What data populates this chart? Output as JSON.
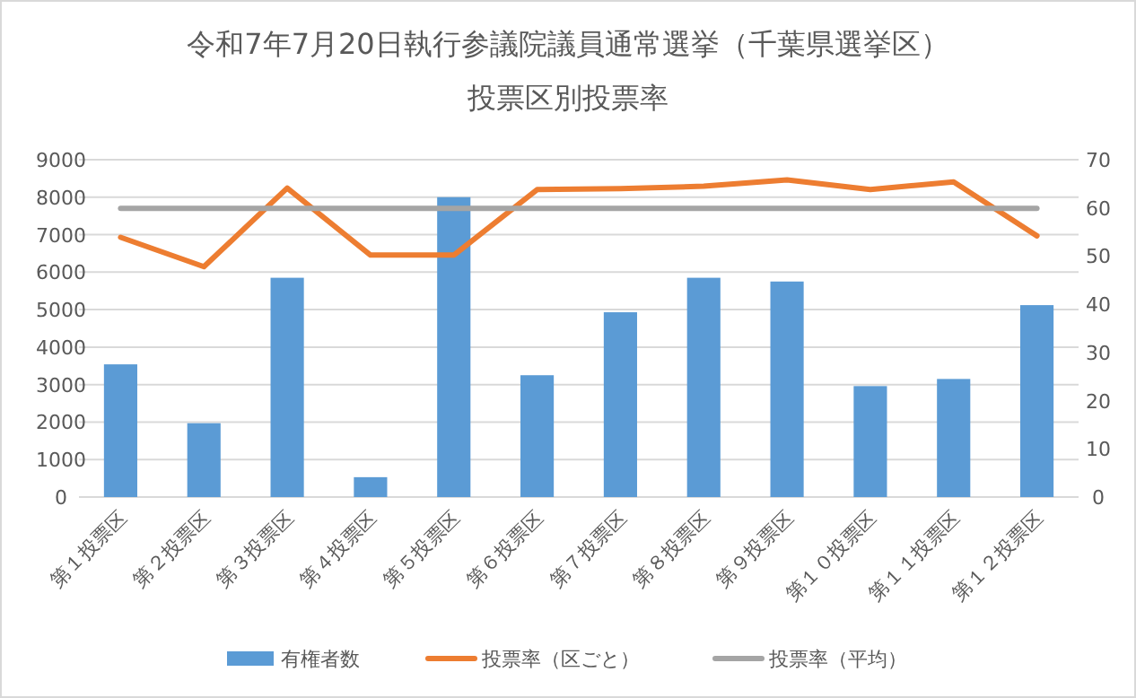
{
  "chart_data": {
    "type": "bar",
    "title": "令和7年7月20日執行参議院議員通常選挙（千葉県選挙区）",
    "subtitle": "投票区別投票率",
    "categories": [
      "第１投票区",
      "第２投票区",
      "第３投票区",
      "第４投票区",
      "第５投票区",
      "第６投票区",
      "第７投票区",
      "第８投票区",
      "第９投票区",
      "第１０投票区",
      "第１１投票区",
      "第１２投票区"
    ],
    "series": [
      {
        "name": "有権者数",
        "color": "#5b9bd5",
        "values": [
          3540,
          1970,
          5850,
          530,
          8000,
          3250,
          4930,
          5850,
          5750,
          2960,
          3150,
          5120
        ]
      },
      {
        "name": "投票率（区ごと）",
        "type": "line",
        "axis": "y2",
        "color": "#ed7d31",
        "values": [
          53.9,
          47.8,
          64.1,
          50.2,
          50.2,
          63.8,
          64.0,
          64.5,
          65.8,
          63.8,
          65.4,
          54.2
        ]
      },
      {
        "name": "投票率（平均）",
        "type": "line",
        "axis": "y2",
        "color": "#a5a5a5",
        "values": [
          59.9,
          59.9,
          59.9,
          59.9,
          59.9,
          59.9,
          59.9,
          59.9,
          59.9,
          59.9,
          59.9,
          59.9
        ]
      }
    ],
    "ylim": [
      0,
      9000
    ],
    "yticks": [
      0,
      1000,
      2000,
      3000,
      4000,
      5000,
      6000,
      7000,
      8000,
      9000
    ],
    "y2lim": [
      0,
      70
    ],
    "y2ticks": [
      0,
      10,
      20,
      30,
      40,
      50,
      60,
      70
    ],
    "grid": "y",
    "legend": "bottom"
  }
}
